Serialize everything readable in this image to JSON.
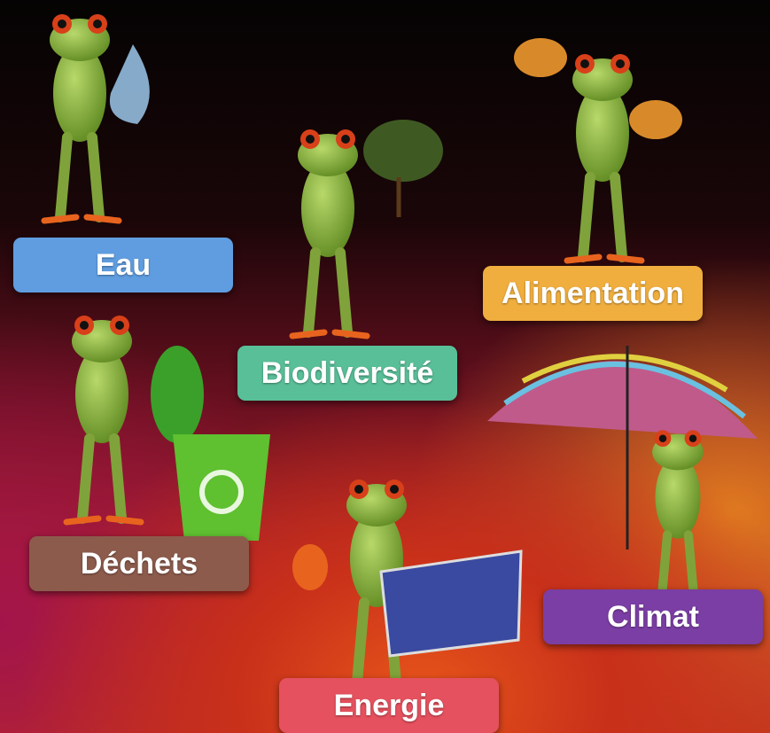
{
  "labels": [
    "Eau",
    "Biodiversité",
    "Alimentation",
    "Déchets",
    "Climat",
    "Energie"
  ]
}
